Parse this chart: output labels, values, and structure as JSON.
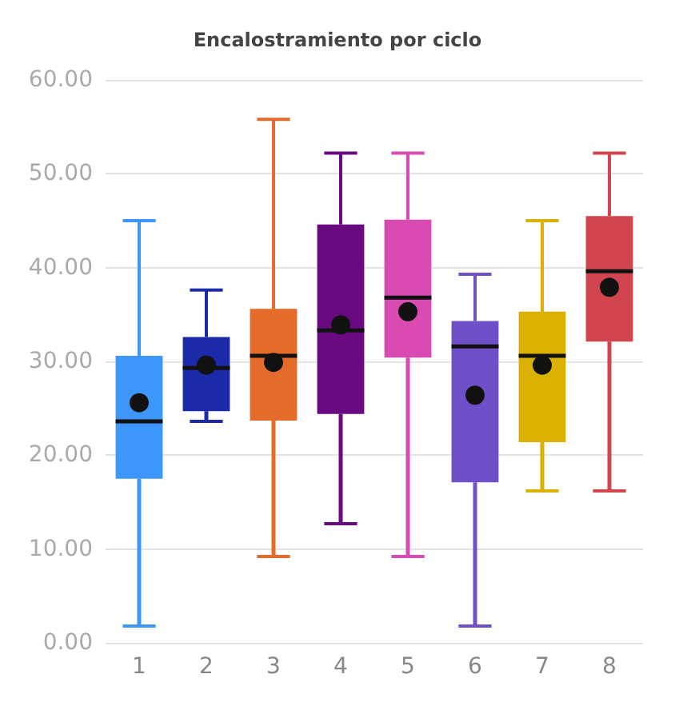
{
  "chart_data": {
    "type": "box",
    "title": "Encalostramiento por ciclo",
    "categories": [
      "1",
      "2",
      "3",
      "4",
      "5",
      "6",
      "7",
      "8"
    ],
    "colors": [
      "#3d97fa",
      "#1b2aa8",
      "#e56b2a",
      "#6a0a80",
      "#d94bb0",
      "#7050c8",
      "#dbb000",
      "#d2454f"
    ],
    "boxes": [
      {
        "low": 1.8,
        "q1": 17.5,
        "median": 23.6,
        "q3": 30.6,
        "high": 45,
        "mean": 25.6
      },
      {
        "low": 23.6,
        "q1": 24.7,
        "median": 29.3,
        "q3": 32.6,
        "high": 37.6,
        "mean": 29.6
      },
      {
        "low": 9.2,
        "q1": 23.7,
        "median": 30.6,
        "q3": 35.6,
        "high": 55.8,
        "mean": 29.9
      },
      {
        "low": 12.7,
        "q1": 24.4,
        "median": 33.3,
        "q3": 44.6,
        "high": 52.2,
        "mean": 33.9
      },
      {
        "low": 9.2,
        "q1": 30.4,
        "median": 36.8,
        "q3": 45.1,
        "high": 52.2,
        "mean": 35.3
      },
      {
        "low": 1.8,
        "q1": 17.1,
        "median": 31.6,
        "q3": 34.3,
        "high": 39.3,
        "mean": 26.4
      },
      {
        "low": 16.2,
        "q1": 21.4,
        "median": 30.6,
        "q3": 35.3,
        "high": 45,
        "mean": 29.6
      },
      {
        "low": 16.2,
        "q1": 32.1,
        "median": 39.6,
        "q3": 45.5,
        "high": 52.2,
        "mean": 37.9
      }
    ],
    "ylim": [
      0,
      60
    ],
    "yticks": [
      {
        "value": 0,
        "label": "0.00"
      },
      {
        "value": 10,
        "label": "10.00"
      },
      {
        "value": 20,
        "label": "20.00"
      },
      {
        "value": 30,
        "label": "30.00"
      },
      {
        "value": 40,
        "label": "40.00"
      },
      {
        "value": 50,
        "label": "50.00"
      },
      {
        "value": 60,
        "label": "60.00"
      }
    ],
    "grid": "y"
  }
}
